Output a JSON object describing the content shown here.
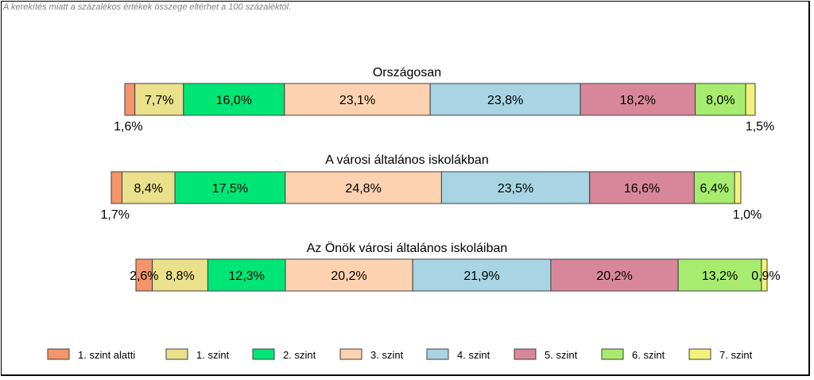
{
  "note": "A kerekítés miatt a  százalékos értékek összege eltérhet a 100 százaléktól.",
  "chart_data": {
    "type": "bar",
    "stacked": "100%",
    "orientation": "horizontal",
    "legend_position": "bottom",
    "series": [
      {
        "name": "1. szint alatti",
        "color": "#f4946a"
      },
      {
        "name": "1. szint",
        "color": "#ebe08c"
      },
      {
        "name": "2. szint",
        "color": "#00e676"
      },
      {
        "name": "3. szint",
        "color": "#fcd2b0"
      },
      {
        "name": "4. szint",
        "color": "#a8d4e4"
      },
      {
        "name": "5. szint",
        "color": "#d8879a"
      },
      {
        "name": "6. szint",
        "color": "#a7ec6f"
      },
      {
        "name": "7. szint",
        "color": "#f2f27a"
      }
    ],
    "groups": [
      {
        "title": "Országosan",
        "values": [
          1.6,
          7.7,
          16.0,
          23.1,
          23.8,
          18.2,
          8.0,
          1.5
        ],
        "labels": [
          "1,6%",
          "7,7%",
          "16,0%",
          "23,1%",
          "23,8%",
          "18,2%",
          "8,0%",
          "1,5%"
        ]
      },
      {
        "title": "A városi általános iskolákban",
        "values": [
          1.7,
          8.4,
          17.5,
          24.8,
          23.5,
          16.6,
          6.4,
          1.0
        ],
        "labels": [
          "1,7%",
          "8,4%",
          "17,5%",
          "24,8%",
          "23,5%",
          "16,6%",
          "6,4%",
          "1,0%"
        ]
      },
      {
        "title": "Az Önök városi általános iskoláiban",
        "values": [
          2.6,
          8.8,
          12.3,
          20.2,
          21.9,
          20.2,
          13.2,
          0.9
        ],
        "labels": [
          "2,6%",
          "8,8%",
          "12,3%",
          "20,2%",
          "21,9%",
          "20,2%",
          "13,2%",
          "0,9%"
        ]
      }
    ]
  }
}
